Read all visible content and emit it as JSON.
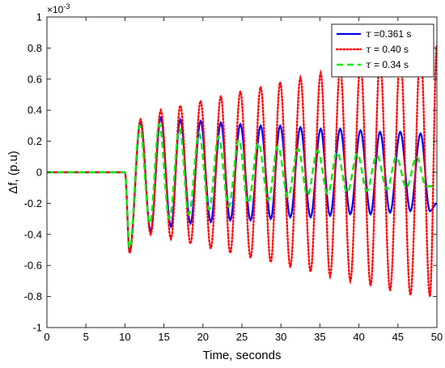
{
  "chart_data": {
    "type": "line",
    "xlabel": "Time, seconds",
    "ylabel": "Δf, (p.u)",
    "y_exponent_label": "×10",
    "y_exponent_power": "-3",
    "xlim": [
      0,
      50
    ],
    "ylim": [
      -1,
      1
    ],
    "xticks": [
      0,
      5,
      10,
      15,
      20,
      25,
      30,
      35,
      40,
      45,
      50
    ],
    "yticks": [
      -1,
      -0.8,
      -0.6,
      -0.4,
      -0.2,
      0,
      0.2,
      0.4,
      0.6,
      0.8,
      1
    ],
    "x_tick_labels": [
      "0",
      "5",
      "10",
      "15",
      "20",
      "25",
      "30",
      "35",
      "40",
      "45",
      "50"
    ],
    "y_tick_labels": [
      "-1",
      "-0.8",
      "-0.6",
      "-0.4",
      "-0.2",
      "0",
      "0.2",
      "0.4",
      "0.6",
      "0.8",
      "1"
    ],
    "grid": false,
    "legend_position": "top-right",
    "series": [
      {
        "legend_symbol": "τ",
        "legend_text": "=0.361 s",
        "color": "#0000ff",
        "line_style": "solid",
        "x": [
          0,
          10,
          10.6,
          12.0,
          13.3,
          14.6,
          15.9,
          17.1,
          18.4,
          19.7,
          21.0,
          22.3,
          23.5,
          24.8,
          26.1,
          27.4,
          28.7,
          29.9,
          31.2,
          32.5,
          33.8,
          35.1,
          36.3,
          37.6,
          38.9,
          40.2,
          41.5,
          42.7,
          44.0,
          45.3,
          46.6,
          47.9,
          49.1,
          50
        ],
        "y": [
          0,
          0,
          -0.51,
          0.32,
          -0.38,
          0.35,
          -0.35,
          0.34,
          -0.33,
          0.33,
          -0.32,
          0.32,
          -0.31,
          0.31,
          -0.31,
          0.3,
          -0.3,
          0.3,
          -0.29,
          0.29,
          -0.29,
          0.28,
          -0.28,
          0.28,
          -0.27,
          0.27,
          -0.27,
          0.26,
          -0.26,
          0.26,
          -0.25,
          0.25,
          -0.25,
          -0.2
        ]
      },
      {
        "legend_symbol": "τ",
        "legend_text": "= 0.40 s",
        "color": "#ff0000",
        "line_style": "dotted",
        "x": [
          0,
          10,
          10.6,
          12.0,
          13.3,
          14.6,
          15.9,
          17.1,
          18.4,
          19.7,
          21.0,
          22.3,
          23.5,
          24.8,
          26.1,
          27.4,
          28.7,
          29.9,
          31.2,
          32.5,
          33.8,
          35.1,
          36.3,
          37.6,
          38.9,
          40.2,
          41.5,
          42.7,
          44.0,
          45.3,
          46.6,
          47.9,
          49.1,
          50
        ],
        "y": [
          0,
          0,
          -0.52,
          0.34,
          -0.4,
          0.4,
          -0.43,
          0.43,
          -0.46,
          0.46,
          -0.49,
          0.49,
          -0.52,
          0.52,
          -0.55,
          0.55,
          -0.58,
          0.58,
          -0.61,
          0.61,
          -0.64,
          0.64,
          -0.67,
          0.67,
          -0.7,
          0.7,
          -0.73,
          0.73,
          -0.76,
          0.76,
          -0.79,
          0.8,
          -0.8,
          0.82
        ]
      },
      {
        "legend_symbol": "τ",
        "legend_text": "= 0.34 s",
        "color": "#00ee00",
        "line_style": "dashed",
        "x": [
          0,
          10,
          10.6,
          11.9,
          13.2,
          14.4,
          15.7,
          17.0,
          18.2,
          19.5,
          20.8,
          22.0,
          23.3,
          24.6,
          25.8,
          27.1,
          28.4,
          29.6,
          30.9,
          32.2,
          33.4,
          34.7,
          36.0,
          37.2,
          38.5,
          39.8,
          41.0,
          42.3,
          43.6,
          44.8,
          46.1,
          47.4,
          48.6,
          49.9
        ],
        "y": [
          0,
          0,
          -0.49,
          0.3,
          -0.33,
          0.31,
          -0.3,
          0.28,
          -0.27,
          0.25,
          -0.24,
          0.23,
          -0.22,
          0.21,
          -0.2,
          0.19,
          -0.18,
          0.17,
          -0.16,
          0.15,
          -0.15,
          0.14,
          -0.14,
          0.13,
          -0.13,
          0.12,
          -0.12,
          0.11,
          -0.11,
          0.1,
          -0.1,
          0.1,
          -0.09,
          -0.09
        ]
      }
    ]
  }
}
